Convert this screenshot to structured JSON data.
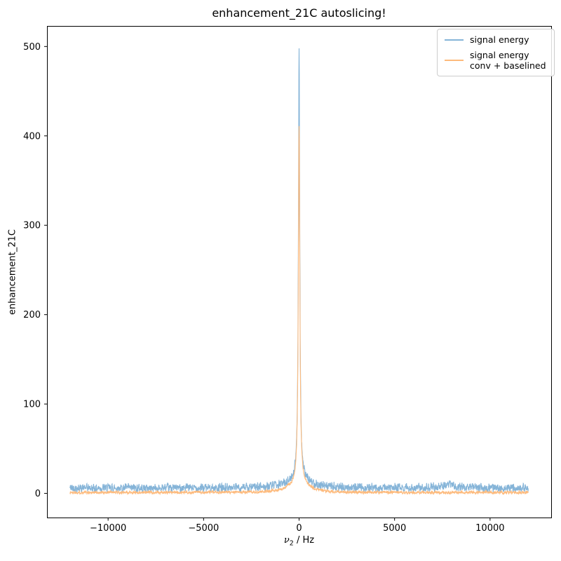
{
  "window": {
    "title": "enhancement_21C autoslicing!"
  },
  "colors": {
    "background": "#ffffff",
    "spine": "#000000",
    "text": "#000000",
    "legend_border": "#cccccc",
    "series_blue": "#85b4d8",
    "series_orange": "#fdba7c"
  },
  "chart_data": {
    "type": "line",
    "title": "enhancement_21C autoslicing!",
    "xlabel": {
      "symbol": "ν",
      "subscript": "2",
      "rest": " / Hz"
    },
    "ylabel": "enhancement_21C",
    "grid": false,
    "legend_position": "upper right",
    "xlim": [
      -13200,
      13200
    ],
    "ylim": [
      -27,
      523
    ],
    "xticks": [
      -10000,
      -5000,
      0,
      5000,
      10000
    ],
    "xtick_labels": [
      "−10000",
      "−5000",
      "0",
      "5000",
      "10000"
    ],
    "yticks": [
      0,
      100,
      200,
      300,
      400,
      500
    ],
    "ytick_labels": [
      "0",
      "100",
      "200",
      "300",
      "400",
      "500"
    ],
    "x_data_range": [
      -12000,
      12000
    ],
    "n_points": 2401,
    "series": [
      {
        "name": "signal energy",
        "label_lines": [
          "signal energy"
        ],
        "color": "#85b4d8",
        "seed": 42,
        "baseline": 6,
        "noise_amplitude": 3.8,
        "peak_max": 498,
        "peak_components": [
          {
            "center": 0,
            "amplitude": 482,
            "hwhm": 42
          },
          {
            "center": 0,
            "amplitude": 10,
            "hwhm": 700
          },
          {
            "center": 7900,
            "amplitude": 4,
            "hwhm": 400
          }
        ]
      },
      {
        "name": "signal energy conv + baselined",
        "label_lines": [
          "signal energy",
          "conv + baselined"
        ],
        "color": "#fdba7c",
        "seed": 1337,
        "baseline": 1,
        "noise_amplitude": 1.3,
        "peak_max": 411,
        "peak_components": [
          {
            "center": 0,
            "amplitude": 400,
            "hwhm": 46
          },
          {
            "center": 0,
            "amplitude": 10,
            "hwhm": 600
          }
        ]
      }
    ]
  }
}
